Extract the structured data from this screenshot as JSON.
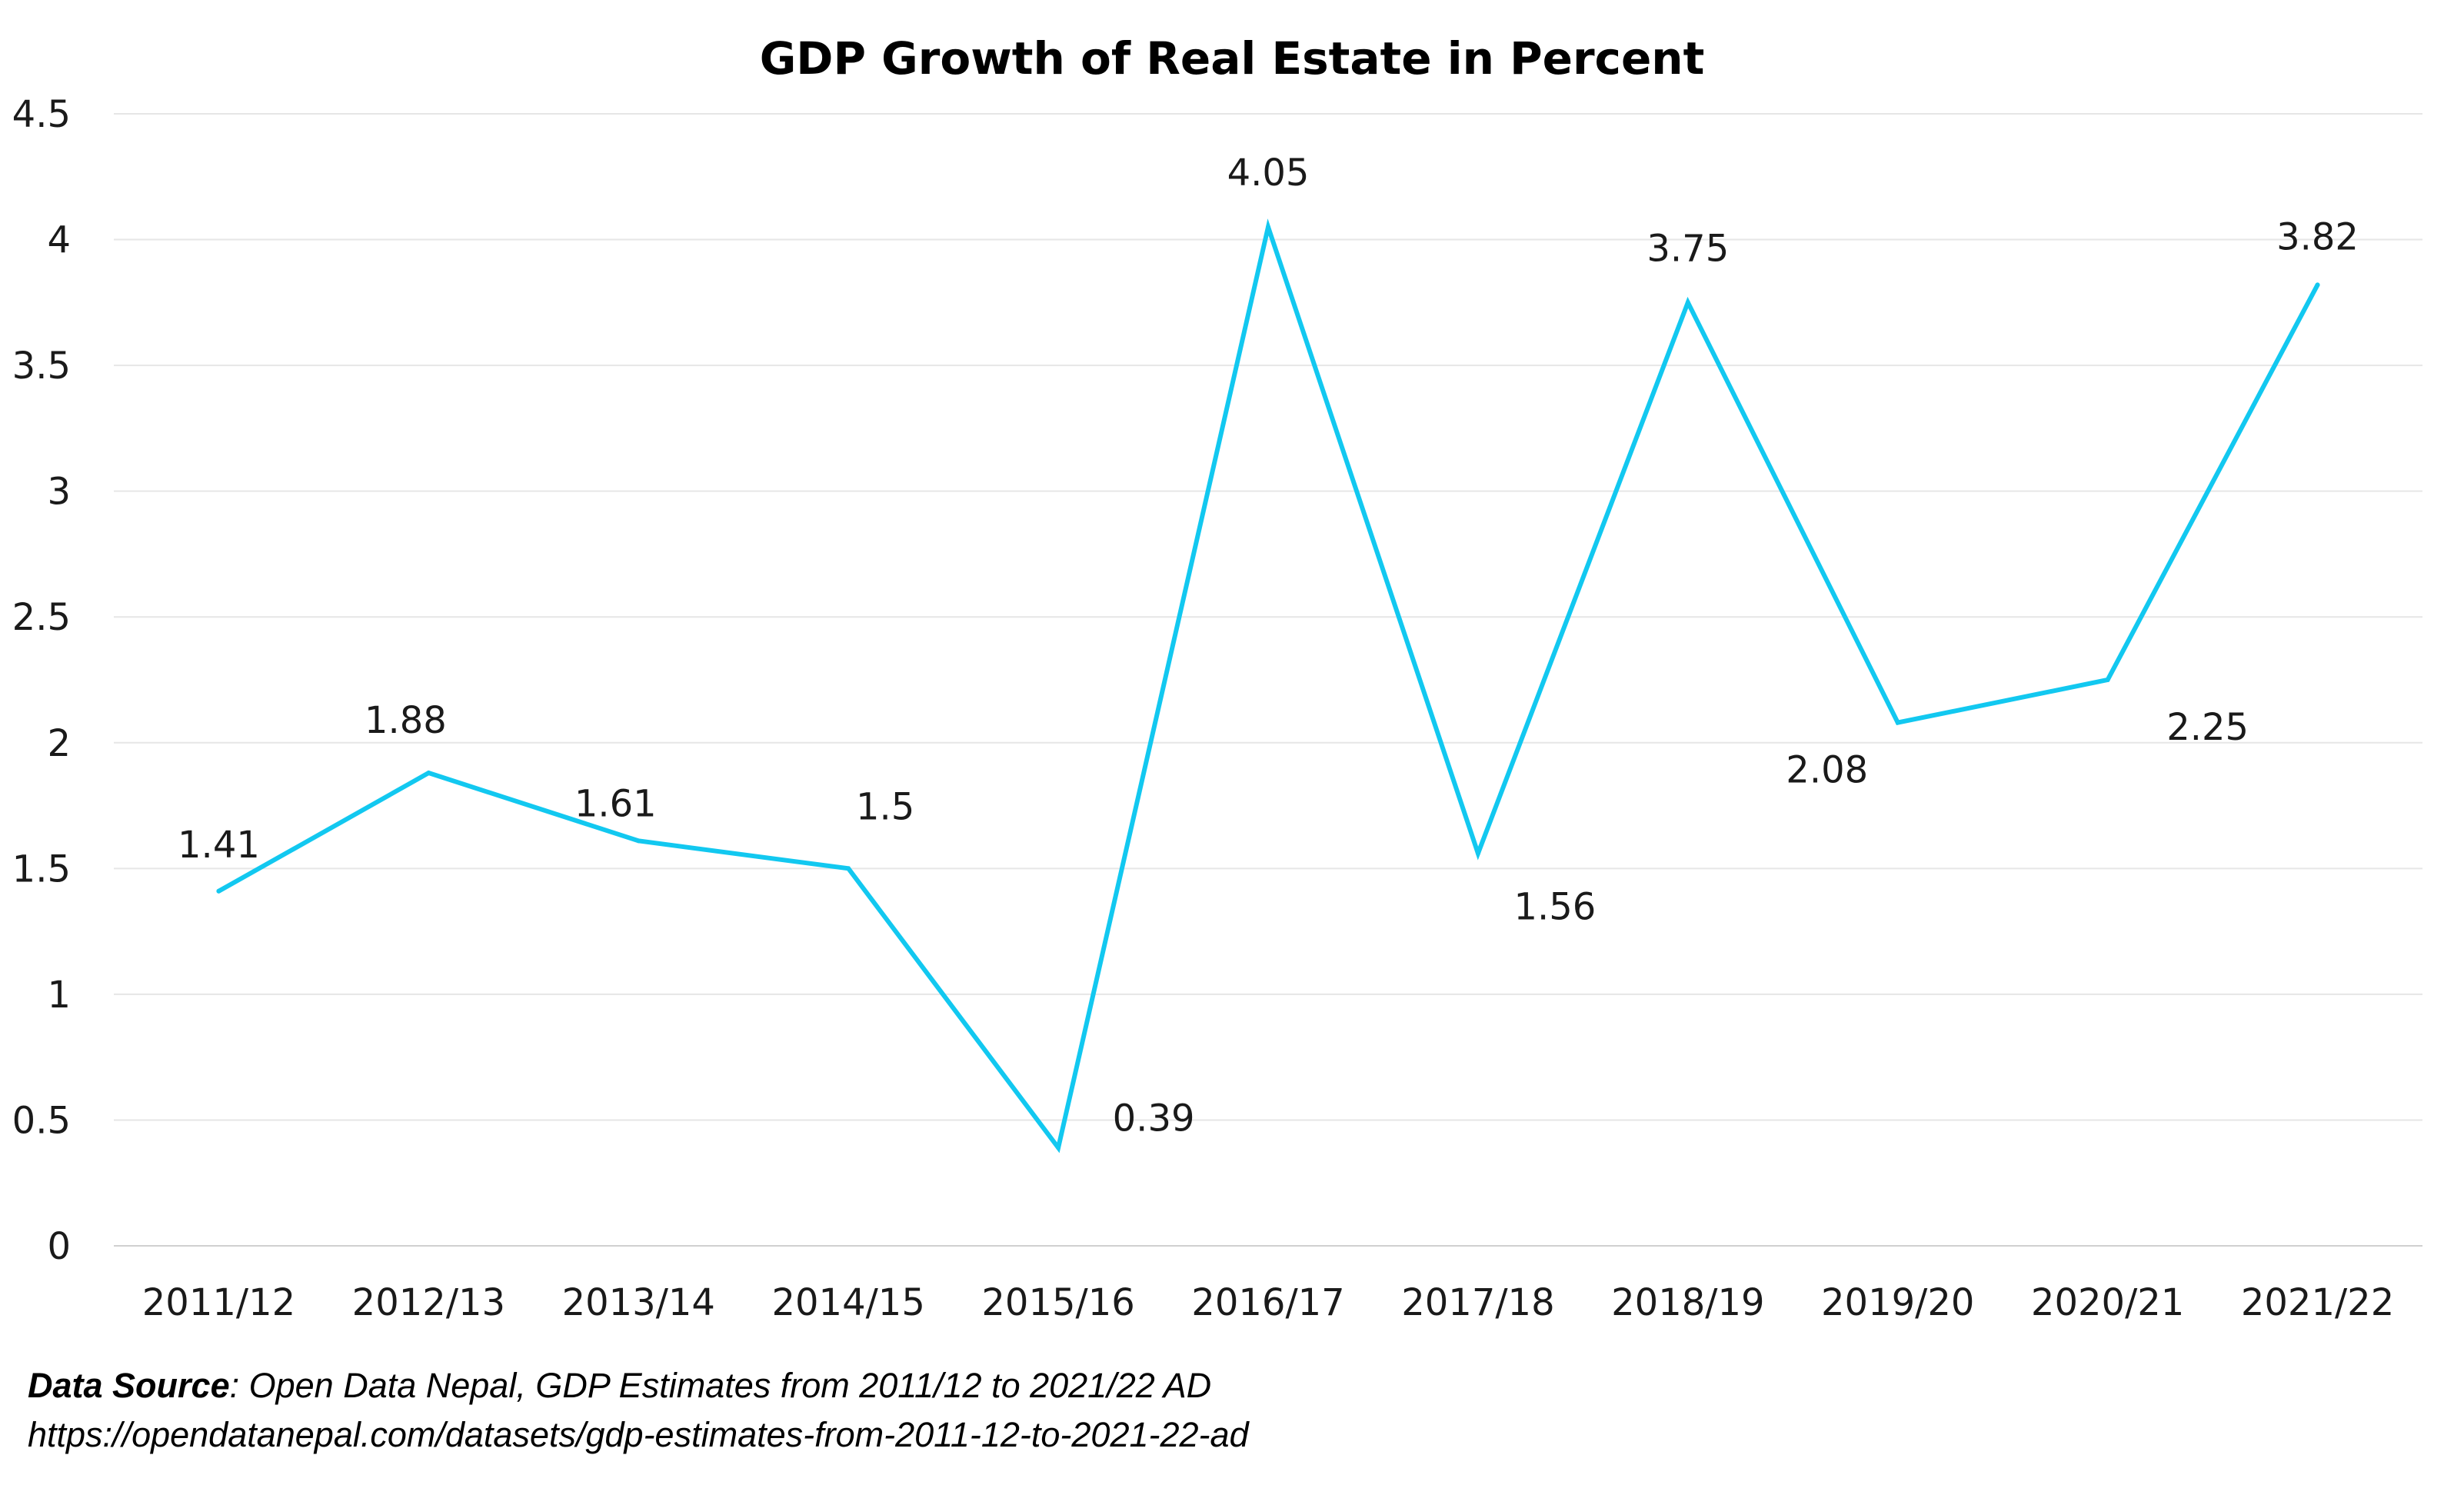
{
  "chart_data": {
    "type": "line",
    "title": "GDP Growth of Real Estate in Percent",
    "xlabel": "",
    "ylabel": "",
    "categories": [
      "2011/12",
      "2012/13",
      "2013/14",
      "2014/15",
      "2015/16",
      "2016/17",
      "2017/18",
      "2018/19",
      "2019/20",
      "2020/21",
      "2021/22"
    ],
    "series": [
      {
        "name": "GDP Growth of Real Estate",
        "values": [
          1.41,
          1.88,
          1.61,
          1.5,
          0.39,
          4.05,
          1.56,
          3.75,
          2.08,
          2.25,
          3.82
        ],
        "labels": [
          "1.41",
          "1.88",
          "1.61",
          "1.5",
          "0.39",
          "4.05",
          "1.56",
          "3.75",
          "2.08",
          "2.25",
          "3.82"
        ],
        "color": "#12c8f0"
      }
    ],
    "ylim": [
      0,
      4.5
    ],
    "yticks": [
      "0",
      "0.5",
      "1",
      "1.5",
      "2",
      "2.5",
      "3",
      "3.5",
      "4",
      "4.5"
    ],
    "grid": true,
    "legend": "none"
  },
  "source": {
    "label": "Data Source",
    "text": ": Open Data Nepal,  GDP Estimates from 2011/12 to 2021/22 AD",
    "url": "https://opendatanepal.com/datasets/gdp-estimates-from-2011-12-to-2021-22-ad"
  }
}
